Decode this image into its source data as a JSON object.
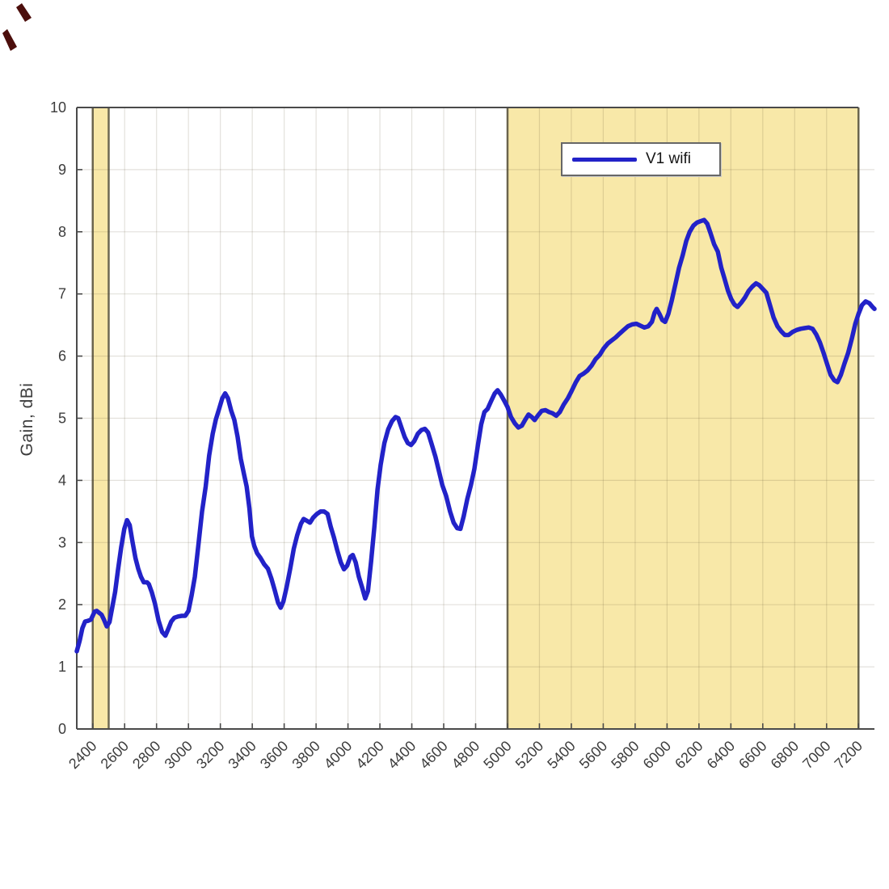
{
  "colors": {
    "line": "#2222c8",
    "band_fill": "#f8e8a8",
    "band_edge": "#6e6952",
    "grid": "rgba(80,70,40,0.16)",
    "axis": "#4a4a4a",
    "tick_label": "#3c3c3c",
    "ylabel_text": "#3c3c3c",
    "legend_border": "#676767",
    "legend_text": "#141414",
    "pen_mark": "#4c0e0c"
  },
  "legend": {
    "entry_label": "V1 wifi"
  },
  "chart_data": {
    "type": "line",
    "title": "",
    "xlabel": "",
    "ylabel": "Gain, dBi",
    "xlim": [
      2300,
      7300
    ],
    "ylim": [
      0,
      10
    ],
    "grid": true,
    "x_ticks": [
      2400,
      2600,
      2800,
      3000,
      3200,
      3400,
      3600,
      3800,
      4000,
      4200,
      4400,
      4600,
      4800,
      5000,
      5200,
      5400,
      5600,
      5800,
      6000,
      6200,
      6400,
      6600,
      6800,
      7000,
      7200
    ],
    "y_ticks": [
      0,
      1,
      2,
      3,
      4,
      5,
      6,
      7,
      8,
      9,
      10
    ],
    "x_tick_rotation_deg": -45,
    "legend_position": "top-right-inside",
    "highlight_bands": [
      {
        "name": "wifi-2g4-band",
        "x0": 2400,
        "x1": 2500
      },
      {
        "name": "wifi-5g-7g-band",
        "x0": 5000,
        "x1": 7200
      }
    ],
    "series": [
      {
        "name": "V1 wifi",
        "color": "#2222c8",
        "points": [
          [
            2300,
            1.25
          ],
          [
            2318,
            1.42
          ],
          [
            2335,
            1.62
          ],
          [
            2352,
            1.73
          ],
          [
            2370,
            1.74
          ],
          [
            2388,
            1.76
          ],
          [
            2400,
            1.82
          ],
          [
            2412,
            1.89
          ],
          [
            2425,
            1.9
          ],
          [
            2440,
            1.87
          ],
          [
            2455,
            1.84
          ],
          [
            2470,
            1.76
          ],
          [
            2488,
            1.65
          ],
          [
            2505,
            1.72
          ],
          [
            2522,
            1.95
          ],
          [
            2540,
            2.2
          ],
          [
            2558,
            2.55
          ],
          [
            2578,
            2.92
          ],
          [
            2598,
            3.22
          ],
          [
            2615,
            3.36
          ],
          [
            2632,
            3.28
          ],
          [
            2650,
            3.0
          ],
          [
            2668,
            2.75
          ],
          [
            2685,
            2.58
          ],
          [
            2702,
            2.45
          ],
          [
            2720,
            2.36
          ],
          [
            2740,
            2.36
          ],
          [
            2752,
            2.33
          ],
          [
            2770,
            2.2
          ],
          [
            2790,
            2.02
          ],
          [
            2812,
            1.75
          ],
          [
            2835,
            1.56
          ],
          [
            2855,
            1.5
          ],
          [
            2872,
            1.6
          ],
          [
            2892,
            1.73
          ],
          [
            2912,
            1.79
          ],
          [
            2935,
            1.81
          ],
          [
            2958,
            1.82
          ],
          [
            2980,
            1.82
          ],
          [
            3000,
            1.9
          ],
          [
            3020,
            2.15
          ],
          [
            3040,
            2.45
          ],
          [
            3062,
            2.95
          ],
          [
            3085,
            3.5
          ],
          [
            3108,
            3.9
          ],
          [
            3130,
            4.4
          ],
          [
            3152,
            4.75
          ],
          [
            3172,
            4.98
          ],
          [
            3192,
            5.15
          ],
          [
            3212,
            5.32
          ],
          [
            3230,
            5.4
          ],
          [
            3248,
            5.32
          ],
          [
            3268,
            5.12
          ],
          [
            3288,
            4.97
          ],
          [
            3308,
            4.7
          ],
          [
            3328,
            4.35
          ],
          [
            3348,
            4.1
          ],
          [
            3365,
            3.9
          ],
          [
            3382,
            3.55
          ],
          [
            3398,
            3.1
          ],
          [
            3412,
            2.95
          ],
          [
            3430,
            2.83
          ],
          [
            3452,
            2.75
          ],
          [
            3475,
            2.65
          ],
          [
            3498,
            2.58
          ],
          [
            3520,
            2.42
          ],
          [
            3542,
            2.22
          ],
          [
            3562,
            2.03
          ],
          [
            3578,
            1.95
          ],
          [
            3595,
            2.05
          ],
          [
            3615,
            2.28
          ],
          [
            3638,
            2.58
          ],
          [
            3660,
            2.9
          ],
          [
            3682,
            3.12
          ],
          [
            3705,
            3.3
          ],
          [
            3722,
            3.38
          ],
          [
            3742,
            3.35
          ],
          [
            3762,
            3.32
          ],
          [
            3782,
            3.4
          ],
          [
            3805,
            3.46
          ],
          [
            3828,
            3.5
          ],
          [
            3850,
            3.5
          ],
          [
            3872,
            3.46
          ],
          [
            3892,
            3.25
          ],
          [
            3912,
            3.08
          ],
          [
            3932,
            2.88
          ],
          [
            3955,
            2.68
          ],
          [
            3975,
            2.57
          ],
          [
            3995,
            2.63
          ],
          [
            4015,
            2.77
          ],
          [
            4030,
            2.8
          ],
          [
            4048,
            2.68
          ],
          [
            4068,
            2.45
          ],
          [
            4088,
            2.28
          ],
          [
            4108,
            2.1
          ],
          [
            4125,
            2.22
          ],
          [
            4145,
            2.7
          ],
          [
            4165,
            3.25
          ],
          [
            4185,
            3.85
          ],
          [
            4205,
            4.25
          ],
          [
            4228,
            4.6
          ],
          [
            4252,
            4.82
          ],
          [
            4275,
            4.95
          ],
          [
            4298,
            5.02
          ],
          [
            4315,
            5.0
          ],
          [
            4335,
            4.85
          ],
          [
            4355,
            4.7
          ],
          [
            4375,
            4.6
          ],
          [
            4395,
            4.57
          ],
          [
            4415,
            4.63
          ],
          [
            4438,
            4.75
          ],
          [
            4460,
            4.81
          ],
          [
            4482,
            4.83
          ],
          [
            4502,
            4.77
          ],
          [
            4525,
            4.58
          ],
          [
            4548,
            4.38
          ],
          [
            4570,
            4.15
          ],
          [
            4592,
            3.92
          ],
          [
            4615,
            3.75
          ],
          [
            4640,
            3.5
          ],
          [
            4662,
            3.32
          ],
          [
            4685,
            3.23
          ],
          [
            4705,
            3.22
          ],
          [
            4725,
            3.42
          ],
          [
            4748,
            3.7
          ],
          [
            4770,
            3.92
          ],
          [
            4792,
            4.18
          ],
          [
            4815,
            4.58
          ],
          [
            4835,
            4.9
          ],
          [
            4855,
            5.1
          ],
          [
            4875,
            5.15
          ],
          [
            4898,
            5.28
          ],
          [
            4920,
            5.4
          ],
          [
            4938,
            5.45
          ],
          [
            4958,
            5.38
          ],
          [
            4980,
            5.28
          ],
          [
            5000,
            5.18
          ],
          [
            5022,
            5.02
          ],
          [
            5045,
            4.92
          ],
          [
            5068,
            4.85
          ],
          [
            5090,
            4.88
          ],
          [
            5112,
            4.98
          ],
          [
            5132,
            5.06
          ],
          [
            5152,
            5.02
          ],
          [
            5170,
            4.97
          ],
          [
            5192,
            5.05
          ],
          [
            5215,
            5.12
          ],
          [
            5238,
            5.13
          ],
          [
            5260,
            5.1
          ],
          [
            5282,
            5.08
          ],
          [
            5305,
            5.04
          ],
          [
            5328,
            5.1
          ],
          [
            5352,
            5.22
          ],
          [
            5378,
            5.32
          ],
          [
            5402,
            5.44
          ],
          [
            5428,
            5.58
          ],
          [
            5452,
            5.68
          ],
          [
            5478,
            5.72
          ],
          [
            5502,
            5.77
          ],
          [
            5528,
            5.85
          ],
          [
            5552,
            5.95
          ],
          [
            5578,
            6.02
          ],
          [
            5602,
            6.12
          ],
          [
            5628,
            6.2
          ],
          [
            5652,
            6.25
          ],
          [
            5678,
            6.3
          ],
          [
            5702,
            6.36
          ],
          [
            5728,
            6.42
          ],
          [
            5755,
            6.48
          ],
          [
            5782,
            6.51
          ],
          [
            5808,
            6.52
          ],
          [
            5832,
            6.49
          ],
          [
            5858,
            6.46
          ],
          [
            5882,
            6.48
          ],
          [
            5905,
            6.55
          ],
          [
            5922,
            6.7
          ],
          [
            5935,
            6.76
          ],
          [
            5952,
            6.68
          ],
          [
            5970,
            6.58
          ],
          [
            5988,
            6.55
          ],
          [
            6008,
            6.68
          ],
          [
            6030,
            6.9
          ],
          [
            6052,
            7.15
          ],
          [
            6075,
            7.42
          ],
          [
            6098,
            7.62
          ],
          [
            6120,
            7.85
          ],
          [
            6142,
            8.0
          ],
          [
            6165,
            8.1
          ],
          [
            6188,
            8.15
          ],
          [
            6210,
            8.17
          ],
          [
            6232,
            8.19
          ],
          [
            6252,
            8.13
          ],
          [
            6272,
            7.98
          ],
          [
            6295,
            7.8
          ],
          [
            6318,
            7.68
          ],
          [
            6340,
            7.42
          ],
          [
            6360,
            7.25
          ],
          [
            6382,
            7.05
          ],
          [
            6402,
            6.92
          ],
          [
            6422,
            6.83
          ],
          [
            6442,
            6.79
          ],
          [
            6465,
            6.86
          ],
          [
            6488,
            6.94
          ],
          [
            6512,
            7.05
          ],
          [
            6535,
            7.12
          ],
          [
            6558,
            7.17
          ],
          [
            6578,
            7.14
          ],
          [
            6600,
            7.08
          ],
          [
            6622,
            7.02
          ],
          [
            6645,
            6.82
          ],
          [
            6668,
            6.62
          ],
          [
            6692,
            6.48
          ],
          [
            6715,
            6.4
          ],
          [
            6738,
            6.34
          ],
          [
            6762,
            6.34
          ],
          [
            6788,
            6.39
          ],
          [
            6812,
            6.42
          ],
          [
            6838,
            6.44
          ],
          [
            6862,
            6.45
          ],
          [
            6888,
            6.46
          ],
          [
            6912,
            6.44
          ],
          [
            6935,
            6.35
          ],
          [
            6958,
            6.22
          ],
          [
            6980,
            6.06
          ],
          [
            7002,
            5.88
          ],
          [
            7025,
            5.7
          ],
          [
            7048,
            5.61
          ],
          [
            7068,
            5.58
          ],
          [
            7090,
            5.7
          ],
          [
            7112,
            5.88
          ],
          [
            7135,
            6.05
          ],
          [
            7158,
            6.28
          ],
          [
            7180,
            6.52
          ],
          [
            7200,
            6.68
          ],
          [
            7222,
            6.82
          ],
          [
            7245,
            6.88
          ],
          [
            7268,
            6.85
          ],
          [
            7288,
            6.79
          ],
          [
            7300,
            6.76
          ]
        ]
      }
    ]
  }
}
